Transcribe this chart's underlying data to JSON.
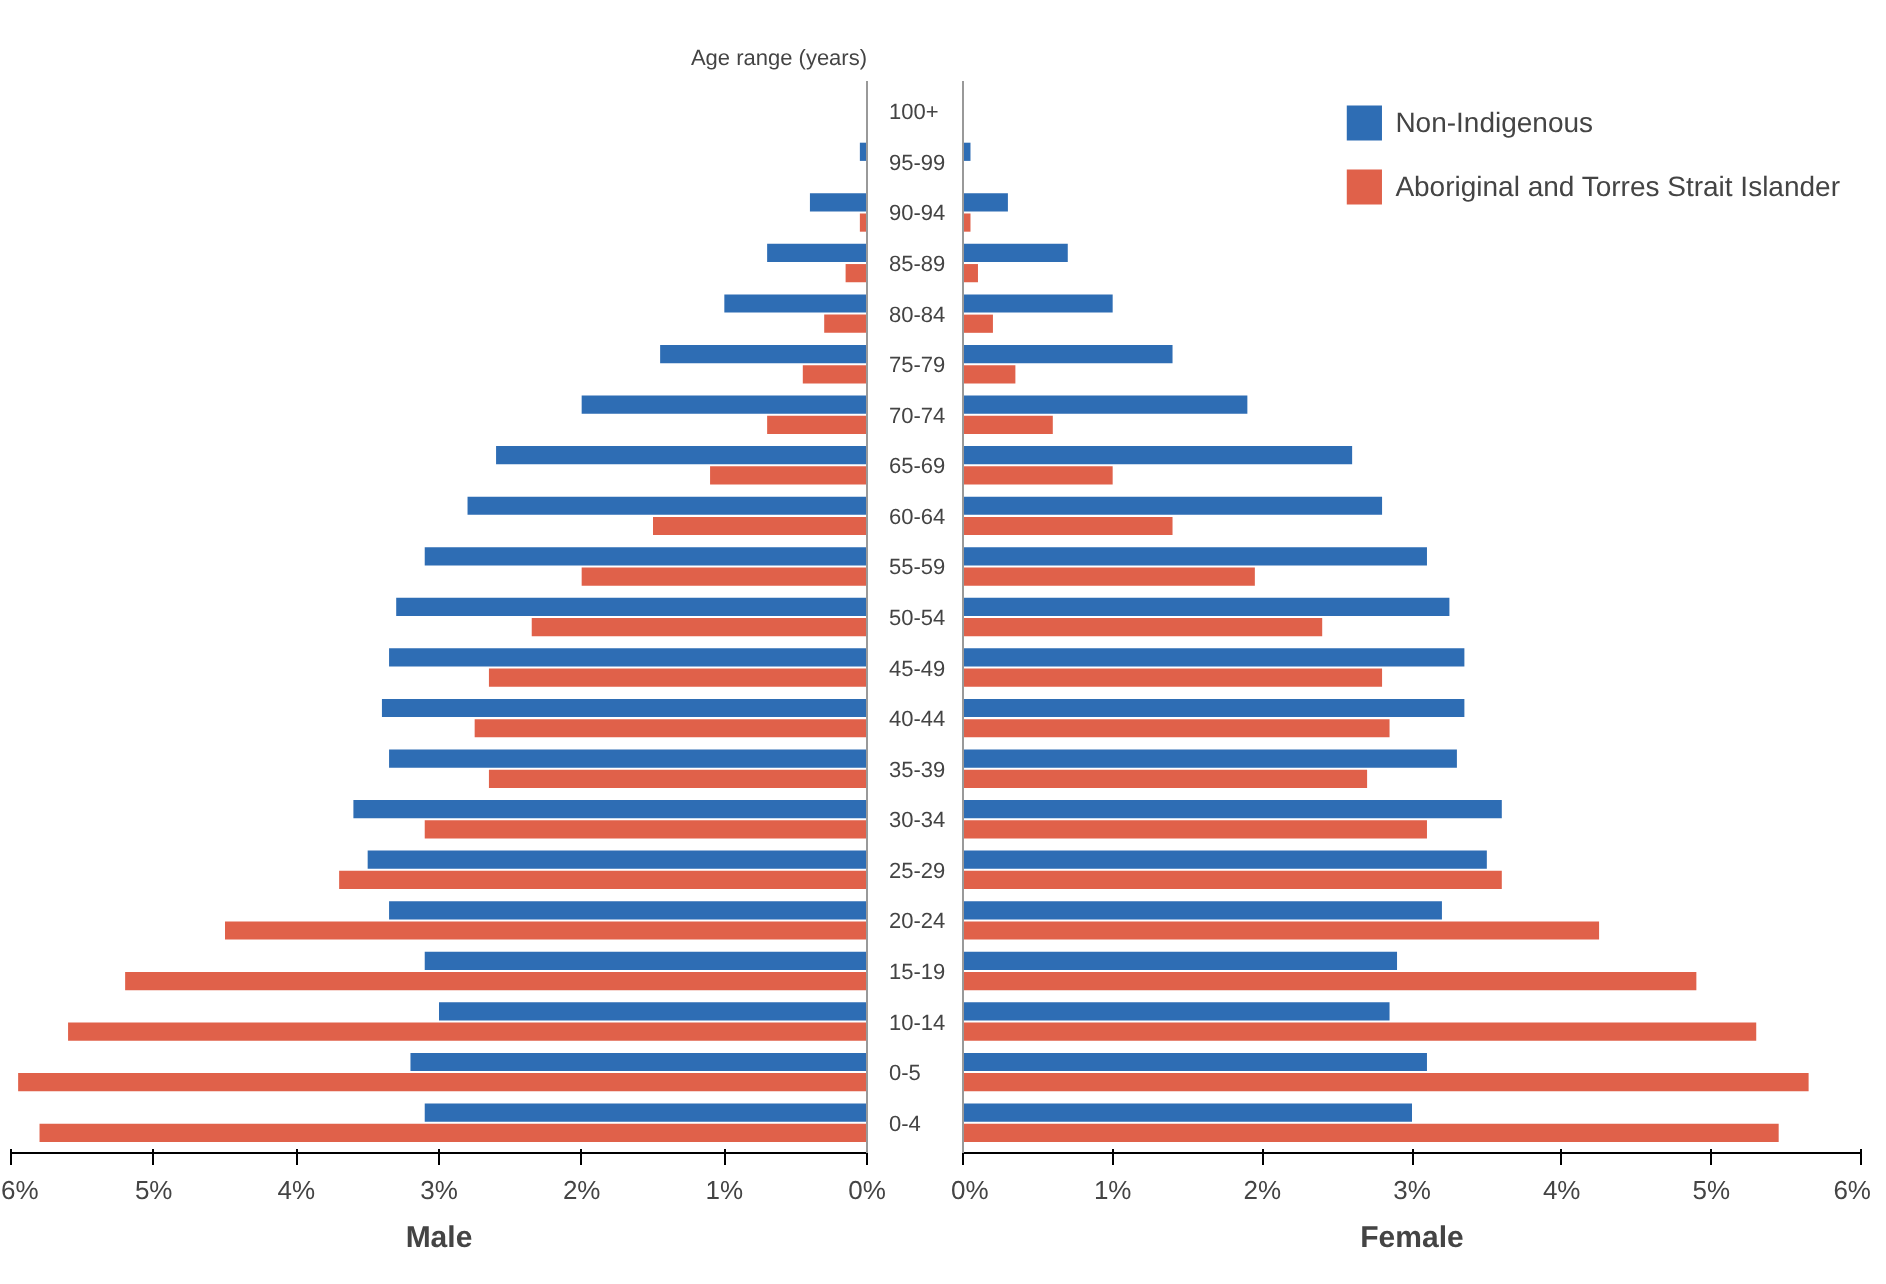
{
  "chart_data": [
    {
      "type": "bar",
      "orientation": "horizontal",
      "title": "Age range (years)",
      "xlabel": "Male",
      "categories": [
        "100+",
        "95-99",
        "90-94",
        "85-89",
        "80-84",
        "75-79",
        "70-74",
        "65-69",
        "60-64",
        "55-59",
        "50-54",
        "45-49",
        "40-44",
        "35-39",
        "30-34",
        "25-29",
        "20-24",
        "15-19",
        "10-14",
        "0-5",
        "0-4"
      ],
      "series": [
        {
          "color": "#2e6db4",
          "values": [
            0,
            0.05,
            0.4,
            0.7,
            1.0,
            1.45,
            2.0,
            2.6,
            2.8,
            3.1,
            3.3,
            3.35,
            3.4,
            3.35,
            3.6,
            3.5,
            3.35,
            3.1,
            3.0,
            3.2,
            3.1
          ]
        },
        {
          "color": "#e0614a",
          "values": [
            0,
            0,
            0.05,
            0.15,
            0.3,
            0.45,
            0.7,
            1.1,
            1.5,
            2.0,
            2.35,
            2.65,
            2.75,
            2.65,
            3.1,
            3.7,
            4.5,
            5.2,
            5.6,
            5.95,
            5.8
          ]
        }
      ],
      "xlim": [
        6,
        0
      ],
      "xticks": [
        {
          "value": 6,
          "label": "6%"
        },
        {
          "value": 5,
          "label": "5%"
        },
        {
          "value": 4,
          "label": "4%"
        },
        {
          "value": 3,
          "label": "3%"
        },
        {
          "value": 2,
          "label": "2%"
        },
        {
          "value": 1,
          "label": "1%"
        },
        {
          "value": 0,
          "label": "0%"
        }
      ]
    },
    {
      "type": "bar",
      "orientation": "horizontal",
      "xlabel": "Female",
      "categories": [
        null,
        null,
        null,
        null,
        null,
        null,
        null,
        null,
        null,
        null,
        null,
        null,
        null,
        null,
        null,
        null,
        null,
        null,
        null,
        null,
        null
      ],
      "series": [
        {
          "name": "Non-Indigenous",
          "color": "#2e6db4",
          "values": [
            0,
            0.05,
            0.3,
            0.7,
            1.0,
            1.4,
            1.9,
            2.6,
            2.8,
            3.1,
            3.25,
            3.35,
            3.35,
            3.3,
            3.6,
            3.5,
            3.2,
            2.9,
            2.85,
            3.1,
            3.0
          ]
        },
        {
          "name": "Aboriginal and Torres Strait Islander",
          "color": "#e0614a",
          "values": [
            0,
            0,
            0.05,
            0.1,
            0.2,
            0.35,
            0.6,
            1.0,
            1.4,
            1.95,
            2.4,
            2.8,
            2.85,
            2.7,
            3.1,
            3.6,
            4.25,
            4.9,
            5.3,
            5.65,
            5.45
          ]
        }
      ],
      "xlim": [
        0,
        6
      ],
      "xticks": [
        {
          "value": 0,
          "label": "0%"
        },
        {
          "value": 1,
          "label": "1%"
        },
        {
          "value": 2,
          "label": "2%"
        },
        {
          "value": 3,
          "label": "3%"
        },
        {
          "value": 4,
          "label": "4%"
        },
        {
          "value": 5,
          "label": "5%"
        },
        {
          "value": 6,
          "label": "6%"
        }
      ],
      "legend": "top right",
      "tick_labels": "x"
    }
  ]
}
